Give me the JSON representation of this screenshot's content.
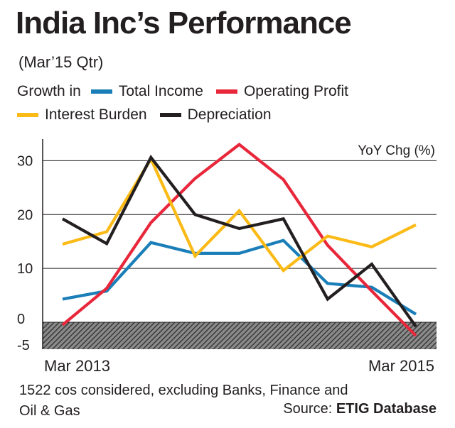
{
  "title": "India Inc’s Performance",
  "subtitle": "(Mar’15 Qtr)",
  "legend_prefix": "Growth in",
  "footnote_line1": "1522 cos considered, excluding Banks, Finance and",
  "footnote_line2": "Oil & Gas",
  "source_label": "Source:",
  "source_name": "ETIG Database",
  "chart_data": {
    "type": "line",
    "ylabel": "YoY Chg (%)",
    "ylim": [
      -5,
      34
    ],
    "yticks": [
      30,
      20,
      10,
      0,
      -5
    ],
    "x_labels": [
      "Mar 2013",
      "Mar 2015"
    ],
    "grid": true,
    "negative_region_hatched": true,
    "x": [
      "Mar 2013",
      "",
      "",
      "",
      "",
      "",
      "",
      "",
      "Mar 2015"
    ],
    "series": [
      {
        "name": "Total Income",
        "color": "#1a7eb8",
        "values": [
          4.3,
          5.8,
          14.8,
          12.8,
          12.8,
          15.2,
          7.2,
          6.5,
          1.5
        ]
      },
      {
        "name": "Operating Profit",
        "color": "#e8273b",
        "values": [
          -0.5,
          6.3,
          18.5,
          26.7,
          33.0,
          26.5,
          14.3,
          5.8,
          -2.5
        ]
      },
      {
        "name": "Interest Burden",
        "color": "#fbba16",
        "values": [
          14.5,
          16.8,
          30.3,
          12.3,
          20.7,
          9.6,
          16.0,
          14.0,
          18.1
        ]
      },
      {
        "name": "Depreciation",
        "color": "#231f20",
        "values": [
          19.2,
          14.6,
          30.6,
          20.0,
          17.4,
          19.2,
          4.3,
          10.8,
          -0.8
        ]
      }
    ]
  }
}
